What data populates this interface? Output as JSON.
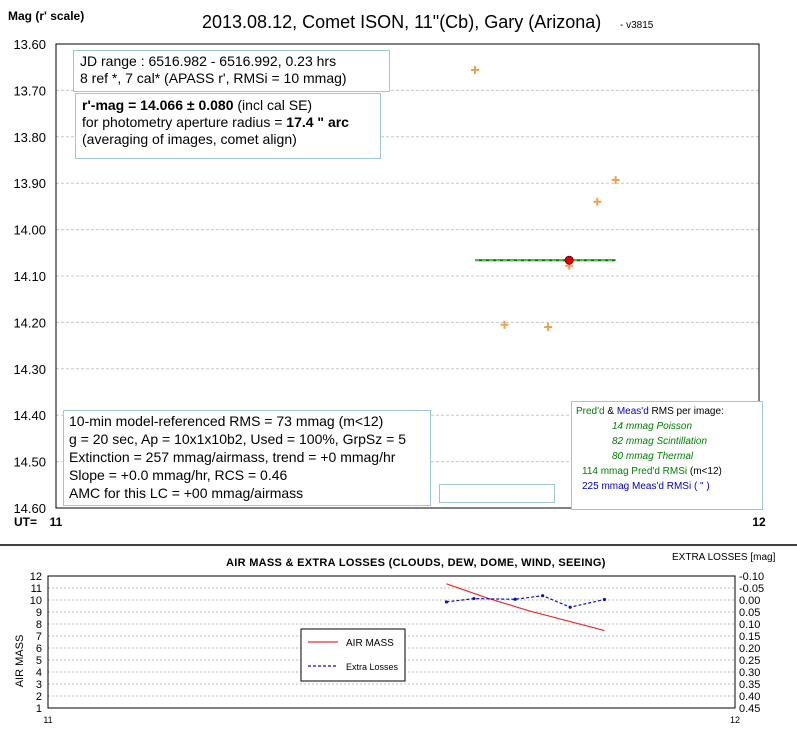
{
  "header": {
    "ylabel_top": "Mag (r' scale)",
    "title": "2013.08.12, Comet ISON, 11\"(Cb), Gary (Arizona)",
    "version": "- v3815",
    "ut_label": "UT="
  },
  "info_box": {
    "line1": "JD range : 6516.982 - 6516.992, 0.23 hrs",
    "line2": "8  ref *, 7 cal* (APASS r', RMSi = 10 mmag)"
  },
  "result_box": {
    "mag_bold": "r'-mag = 14.066 ± 0.080",
    "mag_rest": " (incl cal SE)",
    "aperture_prefix": "for photometry aperture radius = ",
    "aperture_value": "17.4 \" arc",
    "line3": "(averaging of images, comet align)"
  },
  "stats_box": {
    "line1": "10-min model-referenced RMS = 73 mmag (m<12)",
    "line2": "g = 20 sec, Ap = 10x1x10b2, Used = 100%, GrpSz = 5",
    "line3": "Extinction = 257 mmag/airmass, trend = +0 mmag/hr",
    "line4": "Slope = +0.0 mmag/hr, RCS = 0.46",
    "line5": "AMC for this LC = +00 mmag/airmass"
  },
  "rms_box": {
    "title_pred": "Pred'd",
    "title_amp": " & ",
    "title_meas": "Meas'd",
    "title_rest": " RMS per image:",
    "poisson": "14 mmag Poisson",
    "scintillation": "82 mmag Scintillation",
    "thermal": "80 mmag Thermal",
    "pred_rmsi": "114 mmag  Pred'd  RMSi",
    "pred_rmsi_cond": " (m<12)",
    "meas_rmsi": "225 mmag  Meas'd  RMSi ( \" )"
  },
  "colors": {
    "measurement": "#f0a050",
    "mean_line": "#007700",
    "mean_dot": "#e00000",
    "airmass": "#e03030",
    "extra_losses": "#1010b0",
    "rms_green": "#008000",
    "rms_blue": "#0000cc"
  },
  "chart_data": [
    {
      "type": "scatter",
      "title": "2013.08.12, Comet ISON, 11\"(Cb), Gary (Arizona)",
      "ylabel": "Mag (r' scale)",
      "xlabel": "UT=",
      "xlim": [
        11,
        12
      ],
      "ylim": [
        14.6,
        13.6
      ],
      "y_inverted": true,
      "grid": true,
      "xticks": [
        "11",
        "12"
      ],
      "yticks": [
        "13.60",
        "13.70",
        "13.80",
        "13.90",
        "14.00",
        "14.10",
        "14.20",
        "14.30",
        "14.40",
        "14.50",
        "14.60"
      ],
      "series": [
        {
          "x": [
            11.596,
            11.638,
            11.7,
            11.73,
            11.77,
            11.796
          ],
          "y": [
            13.656,
            14.205,
            14.21,
            14.078,
            13.94,
            13.893
          ]
        }
      ],
      "mean": {
        "x_start": 11.596,
        "x_end": 11.796,
        "x_mid": 11.73,
        "y": 14.066
      }
    },
    {
      "type": "line",
      "title": "AIR MASS & EXTRA  LOSSES (CLOUDS,  DEW, DOME,  WIND,  SEEING)",
      "ylabel": "AIR MASS",
      "y2label": "EXTRA  LOSSES [mag]",
      "xlim": [
        11,
        12
      ],
      "ylim": [
        1,
        12
      ],
      "y2lim": [
        0.45,
        -0.1
      ],
      "xticks": [
        "11",
        "12"
      ],
      "yticks": [
        "1",
        "2",
        "3",
        "4",
        "5",
        "6",
        "7",
        "8",
        "9",
        "10",
        "11",
        "12"
      ],
      "y2ticks": [
        "-0.10",
        "-0.05",
        "0.00",
        "0.05",
        "0.10",
        "0.15",
        "0.20",
        "0.25",
        "0.30",
        "0.35",
        "0.40",
        "0.45"
      ],
      "legend": "center-left",
      "series": [
        {
          "name": "AIR MASS",
          "x": [
            11.58,
            11.64,
            11.7,
            11.76,
            11.81
          ],
          "y": [
            11.35,
            10.15,
            9.1,
            8.2,
            7.45
          ]
        },
        {
          "name": "Extra Losses",
          "axis": "right",
          "x": [
            11.58,
            11.62,
            11.68,
            11.72,
            11.76,
            11.81
          ],
          "y": [
            0.008,
            -0.006,
            -0.003,
            -0.018,
            0.03,
            -0.002
          ]
        }
      ]
    }
  ]
}
